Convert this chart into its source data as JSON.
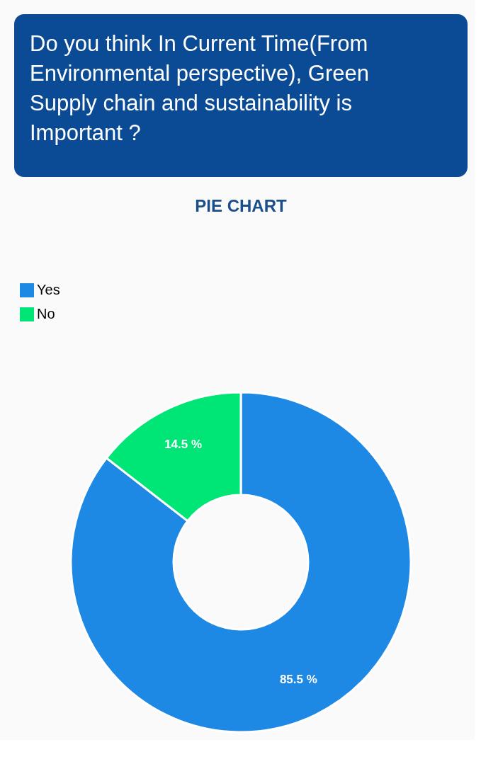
{
  "chart_data": {
    "type": "donut",
    "title": "Do you think In Current Time(From Environmental perspective), Green Supply chain and sustainability is Important ?",
    "subtitle": "PIE CHART",
    "categories": [
      "Yes",
      "No"
    ],
    "values": [
      85.5,
      14.5
    ],
    "colors": [
      "#1e88e5",
      "#00e676"
    ],
    "value_labels": [
      "85.5 %",
      "14.5 %"
    ],
    "legend": "top left"
  }
}
